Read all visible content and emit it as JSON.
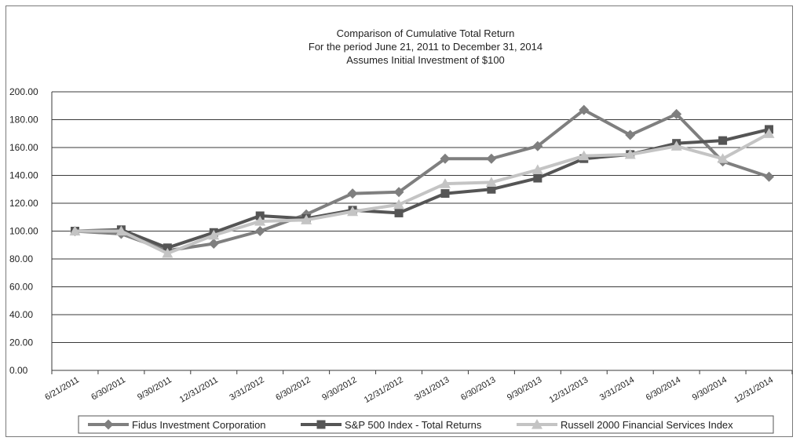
{
  "chart_data": {
    "type": "line",
    "title": "Comparison of Cumulative Total Return",
    "subtitle": [
      "For the period June 21, 2011 to December 31, 2014",
      "Assumes Initial Investment of $100"
    ],
    "categories": [
      "6/21/2011",
      "6/30/2011",
      "9/30/2011",
      "12/31/2011",
      "3/31/2012",
      "6/30/2012",
      "9/30/2012",
      "12/31/2012",
      "3/31/2013",
      "6/30/2013",
      "9/30/2013",
      "12/31/2013",
      "3/31/2014",
      "6/30/2014",
      "9/30/2014",
      "12/31/2014"
    ],
    "ylim": [
      0,
      200
    ],
    "yticks": [
      "0.00",
      "20.00",
      "40.00",
      "60.00",
      "80.00",
      "100.00",
      "120.00",
      "140.00",
      "160.00",
      "180.00",
      "200.00"
    ],
    "grid": true,
    "legend_position": "bottom",
    "series": [
      {
        "name": "Fidus Investment Corporation",
        "marker": "diamond",
        "color": "#7f7f7f",
        "values": [
          100,
          98,
          86,
          91,
          100,
          112,
          127,
          128,
          152,
          152,
          161,
          187,
          169,
          184,
          150,
          139
        ]
      },
      {
        "name": "S&P 500 Index - Total Returns",
        "marker": "square",
        "color": "#555555",
        "values": [
          100,
          101,
          88,
          99,
          111,
          109,
          115,
          113,
          127,
          130,
          138,
          152,
          155,
          163,
          165,
          173
        ]
      },
      {
        "name": "Russell 2000 Financial Services Index",
        "marker": "triangle",
        "color": "#c4c4c4",
        "values": [
          100,
          100,
          84,
          97,
          107,
          108,
          114,
          119,
          134,
          135,
          144,
          154,
          155,
          161,
          152,
          170
        ]
      }
    ]
  }
}
